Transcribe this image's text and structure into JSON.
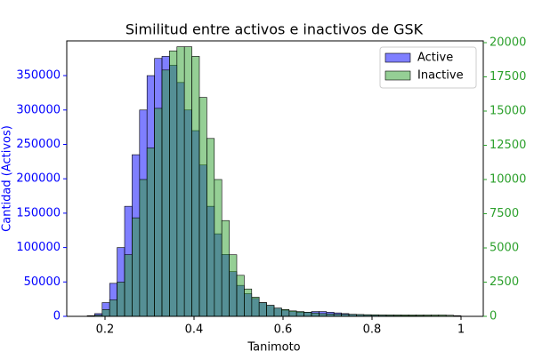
{
  "chart_data": {
    "type": "histogram",
    "title": "Similitud entre activos e inactivos de GSK",
    "xlabel": "Tanimoto",
    "ylabel": "Cantidad (Activos)",
    "bins": [
      0.16,
      0.1768,
      0.1936,
      0.2104,
      0.2272,
      0.244,
      0.2608,
      0.2776,
      0.2944,
      0.3112,
      0.328,
      0.3448,
      0.3616,
      0.3784,
      0.3952,
      0.412,
      0.4288,
      0.4456,
      0.4624,
      0.4792,
      0.496,
      0.5128,
      0.5296,
      0.5464,
      0.5632,
      0.58,
      0.5968,
      0.6136,
      0.6304,
      0.6472,
      0.664,
      0.6808,
      0.6976,
      0.7144,
      0.7312,
      0.748,
      0.7648,
      0.7816,
      0.7984,
      0.8152,
      0.832,
      0.8488,
      0.8656,
      0.8824,
      0.8992,
      0.916,
      0.9328,
      0.9496,
      0.9664,
      0.9832,
      1.0
    ],
    "series": [
      {
        "name": "Active",
        "color": "#0000ff",
        "axis": "y",
        "values": [
          1000,
          4000,
          20000,
          48000,
          100000,
          160000,
          235000,
          300000,
          350000,
          375000,
          378000,
          365000,
          340000,
          300000,
          270000,
          220000,
          160000,
          120000,
          90000,
          65000,
          45000,
          33000,
          26000,
          20000,
          16000,
          12000,
          9000,
          7000,
          6000,
          6000,
          7000,
          7000,
          6000,
          5000,
          4000,
          3000,
          2500,
          2000,
          1800,
          1500,
          1300,
          1200,
          1000,
          900,
          800,
          700,
          600,
          500,
          400,
          300
        ]
      },
      {
        "name": "Inactive",
        "color": "#2ca02c",
        "axis": "y2",
        "values": [
          0,
          100,
          500,
          1200,
          2500,
          4500,
          7200,
          10000,
          12300,
          15200,
          18000,
          19400,
          19700,
          19700,
          19000,
          16000,
          13000,
          10000,
          7000,
          4500,
          3000,
          2000,
          1400,
          1000,
          800,
          600,
          500,
          400,
          350,
          300,
          250,
          200,
          180,
          160,
          150,
          140,
          130,
          120,
          110,
          100,
          100,
          100,
          100,
          100,
          100,
          100,
          100,
          100,
          80,
          50
        ]
      }
    ],
    "xlim": [
      0.114,
      1.05
    ],
    "xticks": [
      0.2,
      0.4,
      0.6,
      0.8,
      1.0
    ],
    "ylim": [
      0,
      400500
    ],
    "yticks": [
      0,
      50000,
      100000,
      150000,
      200000,
      250000,
      300000,
      350000
    ],
    "y2lim": [
      0,
      20130
    ],
    "y2ticks": [
      0,
      2500,
      5000,
      7500,
      10000,
      12500,
      15000,
      17500,
      20000
    ],
    "legend": "upper-right"
  }
}
